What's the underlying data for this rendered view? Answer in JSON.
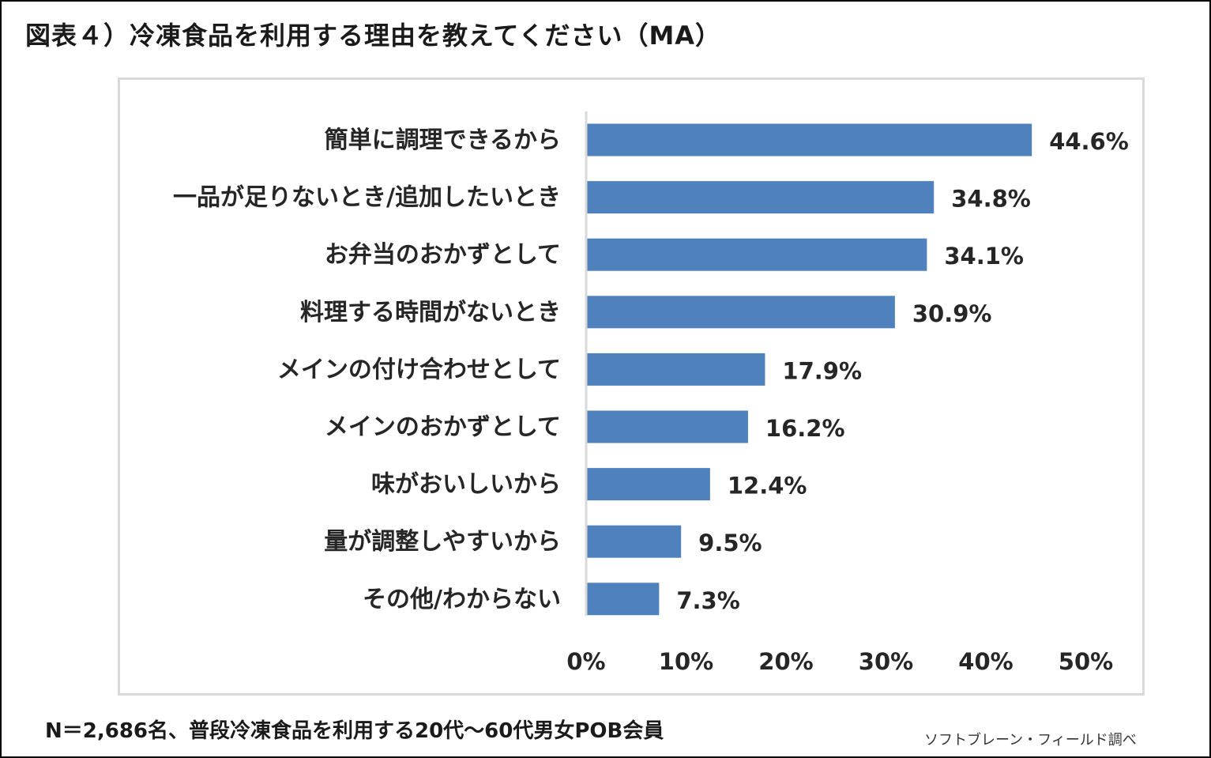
{
  "title": "図表４）冷凍食品を利用する理由を教えてください（MA）",
  "footnote": "N＝2,686名、普段冷凍食品を利用する20代～60代男女POB会員",
  "source": "ソフトブレーン・フィールド調べ",
  "colors": {
    "bar": "#4f81bd",
    "axis": "#d9d9d9",
    "text": "#262626"
  },
  "chart_data": {
    "type": "bar",
    "orientation": "horizontal",
    "categories": [
      "簡単に調理できるから",
      "一品が足りないとき/追加したいとき",
      "お弁当のおかずとして",
      "料理する時間がないとき",
      "メインの付け合わせとして",
      "メインのおかずとして",
      "味がおいしいから",
      "量が調整しやすいから",
      "その他/わからない"
    ],
    "values": [
      44.6,
      34.8,
      34.1,
      30.9,
      17.9,
      16.2,
      12.4,
      9.5,
      7.3
    ],
    "value_labels": [
      "44.6%",
      "34.8%",
      "34.1%",
      "30.9%",
      "17.9%",
      "16.2%",
      "12.4%",
      "9.5%",
      "7.3%"
    ],
    "xlim": [
      0,
      50
    ],
    "xticks": [
      0,
      10,
      20,
      30,
      40,
      50
    ],
    "xtick_labels": [
      "0%",
      "10%",
      "20%",
      "30%",
      "40%",
      "50%"
    ],
    "grid": false,
    "legend": "none"
  }
}
